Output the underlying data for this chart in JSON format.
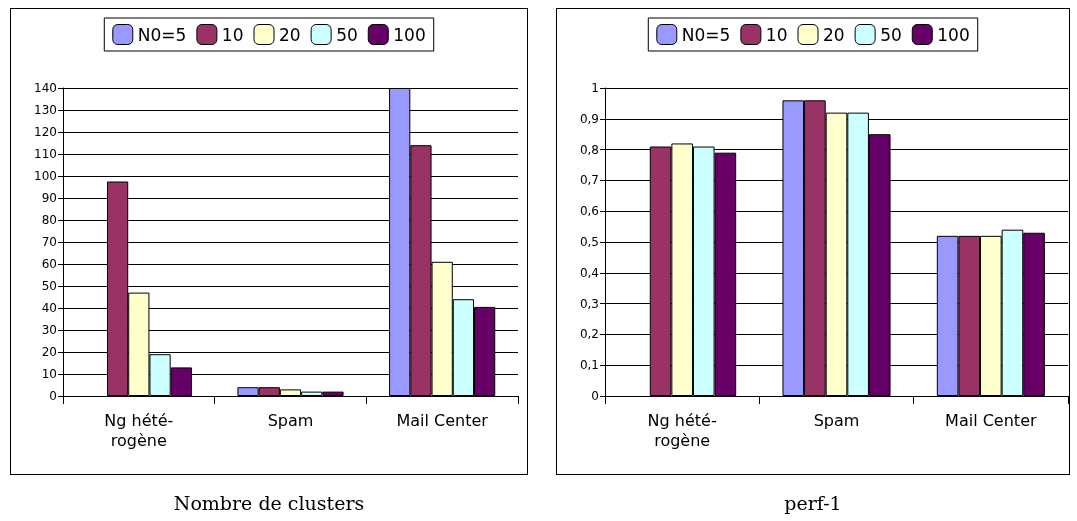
{
  "chart_data": [
    {
      "type": "bar",
      "title": "Nombre de clusters",
      "categories": [
        "Ng hété-\nrogène",
        "Spam",
        "Mail Center"
      ],
      "series": [
        {
          "name": "N0=5",
          "color": "#9999ff",
          "values": [
            null,
            4,
            140
          ]
        },
        {
          "name": "10",
          "color": "#993366",
          "values": [
            97.5,
            4,
            114
          ]
        },
        {
          "name": "20",
          "color": "#ffffcc",
          "values": [
            47,
            3,
            61
          ]
        },
        {
          "name": "50",
          "color": "#ccffff",
          "values": [
            19,
            2,
            44
          ]
        },
        {
          "name": "100",
          "color": "#660066",
          "values": [
            13,
            2,
            40.5
          ]
        }
      ],
      "ylim": [
        0,
        140
      ],
      "yticks": [
        0,
        10,
        20,
        30,
        40,
        50,
        60,
        70,
        80,
        90,
        100,
        110,
        120,
        130,
        140
      ],
      "grid": "y",
      "legend": "top"
    },
    {
      "type": "bar",
      "title": "perf-1",
      "categories": [
        "Ng hété-\nrogène",
        "Spam",
        "Mail Center"
      ],
      "series": [
        {
          "name": "N0=5",
          "color": "#9999ff",
          "values": [
            null,
            0.96,
            0.52
          ]
        },
        {
          "name": "10",
          "color": "#993366",
          "values": [
            0.81,
            0.96,
            0.52
          ]
        },
        {
          "name": "20",
          "color": "#ffffcc",
          "values": [
            0.82,
            0.92,
            0.52
          ]
        },
        {
          "name": "50",
          "color": "#ccffff",
          "values": [
            0.81,
            0.92,
            0.54
          ]
        },
        {
          "name": "100",
          "color": "#660066",
          "values": [
            0.79,
            0.85,
            0.53
          ]
        }
      ],
      "ylim": [
        0,
        1
      ],
      "yticks": [
        0,
        {
          "value": 0.1,
          "label": "0,1"
        },
        {
          "value": 0.2,
          "label": "0,2"
        },
        {
          "value": 0.3,
          "label": "0,3"
        },
        {
          "value": 0.4,
          "label": "0,4"
        },
        {
          "value": 0.5,
          "label": "0,5"
        },
        {
          "value": 0.6,
          "label": "0,6"
        },
        {
          "value": 0.7,
          "label": "0,7"
        },
        {
          "value": 0.8,
          "label": "0,8"
        },
        {
          "value": 0.9,
          "label": "0,9"
        },
        1
      ],
      "grid": "y",
      "legend": "top"
    }
  ]
}
